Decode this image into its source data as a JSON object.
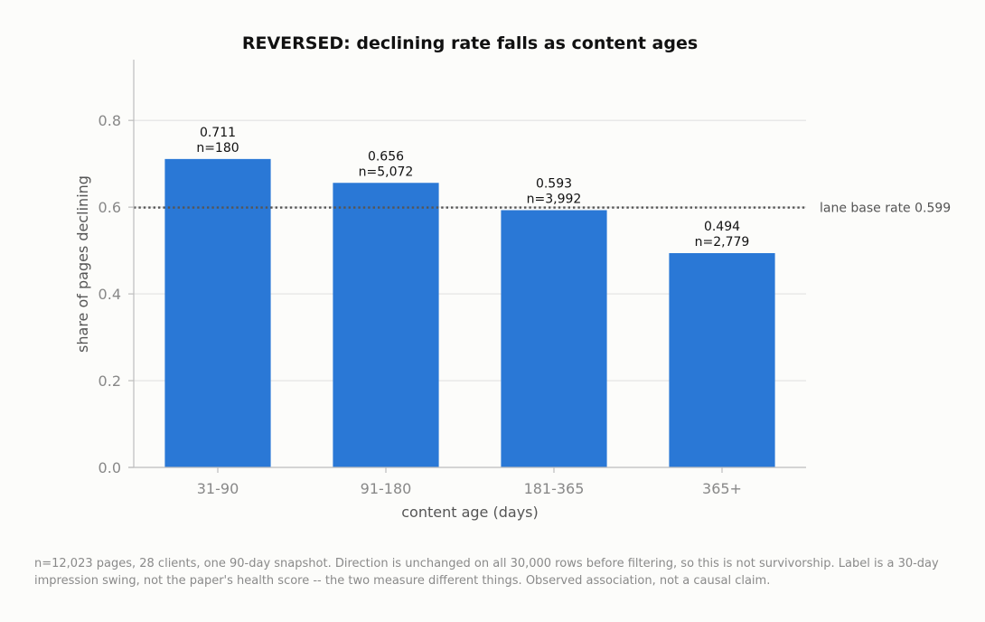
{
  "chart_data": {
    "type": "bar",
    "title": "REVERSED: declining rate falls as content ages",
    "xlabel": "content age (days)",
    "ylabel": "share of pages declining",
    "categories": [
      "31-90",
      "91-180",
      "181-365",
      "365+"
    ],
    "values": [
      0.711,
      0.656,
      0.593,
      0.494
    ],
    "value_labels": [
      "0.711",
      "0.656",
      "0.593",
      "0.494"
    ],
    "n_labels": [
      "n=180",
      "n=5,072",
      "n=3,992",
      "n=2,779"
    ],
    "ylim": [
      0,
      0.94
    ],
    "yticks": [
      0.0,
      0.2,
      0.4,
      0.6,
      0.8
    ],
    "ytick_labels": [
      "0.0",
      "0.2",
      "0.4",
      "0.6",
      "0.8"
    ],
    "grid": true,
    "reference_line": {
      "value": 0.599,
      "label": "lane base rate 0.599",
      "style": "dotted"
    },
    "colors": {
      "bar": "#2a78d6",
      "grid": "#e2e2e2",
      "axis": "#bdbdbd",
      "reference": "#555555",
      "tick_text": "#888888",
      "label_text": "#555555"
    }
  },
  "footnote": "n=12,023 pages, 28 clients, one 90-day snapshot. Direction is unchanged on all 30,000 rows before filtering, so this is not survivorship. Label is a 30-day impression swing, not the paper's health score -- the two measure different things. Observed association, not a causal claim."
}
